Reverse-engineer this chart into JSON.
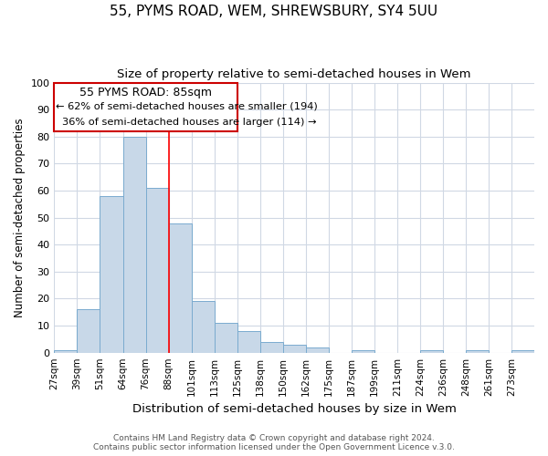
{
  "title": "55, PYMS ROAD, WEM, SHREWSBURY, SY4 5UU",
  "subtitle": "Size of property relative to semi-detached houses in Wem",
  "xlabel": "Distribution of semi-detached houses by size in Wem",
  "ylabel": "Number of semi-detached properties",
  "categories": [
    "27sqm",
    "39sqm",
    "51sqm",
    "64sqm",
    "76sqm",
    "88sqm",
    "101sqm",
    "113sqm",
    "125sqm",
    "138sqm",
    "150sqm",
    "162sqm",
    "175sqm",
    "187sqm",
    "199sqm",
    "211sqm",
    "224sqm",
    "236sqm",
    "248sqm",
    "261sqm",
    "273sqm"
  ],
  "values": [
    1,
    16,
    58,
    80,
    61,
    48,
    19,
    11,
    8,
    4,
    3,
    2,
    0,
    1,
    0,
    0,
    1,
    0,
    1,
    0,
    1
  ],
  "bar_color": "#c8d8e8",
  "bar_edge_color": "#7aabcf",
  "ylim": [
    0,
    100
  ],
  "red_line_x": 5.0,
  "annotation_title": "55 PYMS ROAD: 85sqm",
  "annotation_line1": "← 62% of semi-detached houses are smaller (194)",
  "annotation_line2": "  36% of semi-detached houses are larger (114) →",
  "annotation_box_color": "#ffffff",
  "annotation_box_edge": "#cc0000",
  "footer_line1": "Contains HM Land Registry data © Crown copyright and database right 2024.",
  "footer_line2": "Contains public sector information licensed under the Open Government Licence v.3.0.",
  "background_color": "#ffffff",
  "grid_color": "#d0d8e4"
}
